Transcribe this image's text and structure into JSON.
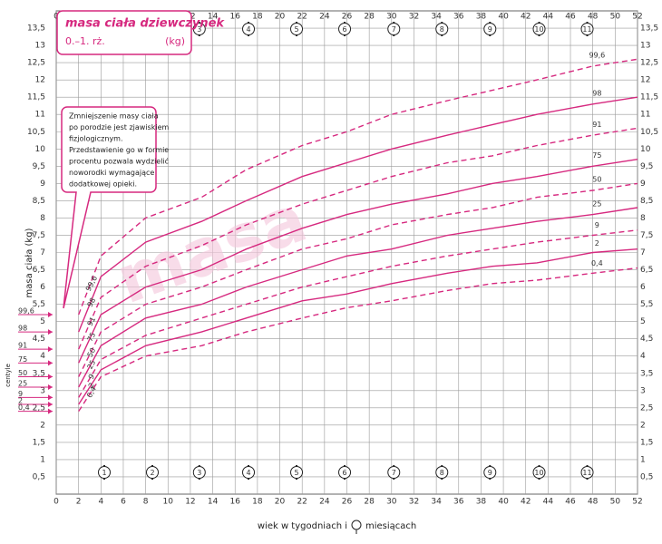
{
  "chart_data": {
    "type": "line",
    "title": "masa ciała dziewczynek",
    "subtitle": "0.–1. rż.",
    "unit": "(kg)",
    "note": [
      "Zmniejszenie masy ciała",
      "po porodzie jest zjawiskiem",
      "fizjologicznym.",
      "Przedstawienie go w formie",
      "procentu pozwala wydzielić",
      "noworodki wymagające",
      "dodatkowej opieki."
    ],
    "y_label": "masa ciała (kg)",
    "x_label": [
      "wiek w tygodniach i",
      "miesiącach"
    ],
    "legend_title": "centyle",
    "watermark": "masa",
    "x": [
      2,
      4,
      8,
      13,
      17,
      22,
      26,
      30,
      35,
      39,
      43,
      48,
      52
    ],
    "series": [
      {
        "name": "99,6",
        "color": "#d6297f",
        "style": "dashed",
        "values": [
          5.2,
          6.9,
          8.0,
          8.6,
          9.4,
          10.1,
          10.5,
          11.0,
          11.4,
          11.7,
          12.0,
          12.4,
          12.6
        ]
      },
      {
        "name": "98",
        "color": "#d6297f",
        "style": "solid",
        "values": [
          4.7,
          6.3,
          7.3,
          7.9,
          8.5,
          9.2,
          9.6,
          10.0,
          10.4,
          10.7,
          11.0,
          11.3,
          11.5
        ]
      },
      {
        "name": "91",
        "color": "#d6297f",
        "style": "dashed",
        "values": [
          4.2,
          5.7,
          6.6,
          7.2,
          7.8,
          8.4,
          8.8,
          9.2,
          9.6,
          9.8,
          10.1,
          10.4,
          10.6
        ]
      },
      {
        "name": "75",
        "color": "#d6297f",
        "style": "solid",
        "values": [
          3.8,
          5.2,
          6.0,
          6.5,
          7.1,
          7.7,
          8.1,
          8.4,
          8.7,
          9.0,
          9.2,
          9.5,
          9.7
        ]
      },
      {
        "name": "50",
        "color": "#d6297f",
        "style": "dashed",
        "values": [
          3.4,
          4.7,
          5.5,
          6.0,
          6.5,
          7.1,
          7.4,
          7.8,
          8.1,
          8.3,
          8.6,
          8.8,
          9.0
        ]
      },
      {
        "name": "25",
        "color": "#d6297f",
        "style": "solid",
        "values": [
          3.1,
          4.3,
          5.1,
          5.5,
          6.0,
          6.5,
          6.9,
          7.1,
          7.5,
          7.7,
          7.9,
          8.1,
          8.3
        ]
      },
      {
        "name": "9",
        "color": "#d6297f",
        "style": "dashed",
        "values": [
          2.8,
          3.9,
          4.6,
          5.1,
          5.5,
          6.0,
          6.3,
          6.6,
          6.9,
          7.1,
          7.3,
          7.5,
          7.65
        ]
      },
      {
        "name": "2",
        "color": "#d6297f",
        "style": "solid",
        "values": [
          2.6,
          3.6,
          4.3,
          4.7,
          5.1,
          5.6,
          5.8,
          6.1,
          6.4,
          6.6,
          6.7,
          7.0,
          7.1
        ]
      },
      {
        "name": "0,4",
        "color": "#d6297f",
        "style": "dashed",
        "values": [
          2.4,
          3.4,
          4.0,
          4.3,
          4.7,
          5.1,
          5.4,
          5.6,
          5.9,
          6.1,
          6.2,
          6.4,
          6.55
        ]
      }
    ],
    "months": [
      {
        "label": "1",
        "week": 4.3
      },
      {
        "label": "2",
        "week": 8.6
      },
      {
        "label": "3",
        "week": 12.8
      },
      {
        "label": "4",
        "week": 17.2
      },
      {
        "label": "5",
        "week": 21.5
      },
      {
        "label": "6",
        "week": 25.8
      },
      {
        "label": "7",
        "week": 30.2
      },
      {
        "label": "8",
        "week": 34.5
      },
      {
        "label": "9",
        "week": 38.8
      },
      {
        "label": "10",
        "week": 43.2
      },
      {
        "label": "11",
        "week": 47.5
      }
    ],
    "xlim": [
      0,
      52
    ],
    "xticks": [
      0,
      2,
      4,
      6,
      8,
      10,
      12,
      14,
      16,
      18,
      20,
      22,
      24,
      26,
      28,
      30,
      32,
      34,
      36,
      38,
      40,
      42,
      44,
      46,
      48,
      50,
      52
    ],
    "ylim": [
      0,
      14
    ],
    "yticks": [
      {
        "value": 0.5,
        "label": "0,5"
      },
      1,
      {
        "value": 1.5,
        "label": "1,5"
      },
      2,
      {
        "value": 2.5,
        "label": "2,5"
      },
      3,
      {
        "value": 3.5,
        "label": "3,5"
      },
      4,
      {
        "value": 4.5,
        "label": "4,5"
      },
      5,
      {
        "value": 5.5,
        "label": "5,5"
      },
      6,
      {
        "value": 6.5,
        "label": "6,5"
      },
      7,
      {
        "value": 7.5,
        "label": "7,5"
      },
      8,
      {
        "value": 8.5,
        "label": "8,5"
      },
      9,
      {
        "value": 9.5,
        "label": "9,5"
      },
      10,
      {
        "value": 10.5,
        "label": "10,5"
      },
      11,
      {
        "value": 11.5,
        "label": "11,5"
      },
      12,
      {
        "value": 12.5,
        "label": "12,5"
      },
      13,
      {
        "value": 13.5,
        "label": "13,5"
      }
    ],
    "grid": true
  }
}
